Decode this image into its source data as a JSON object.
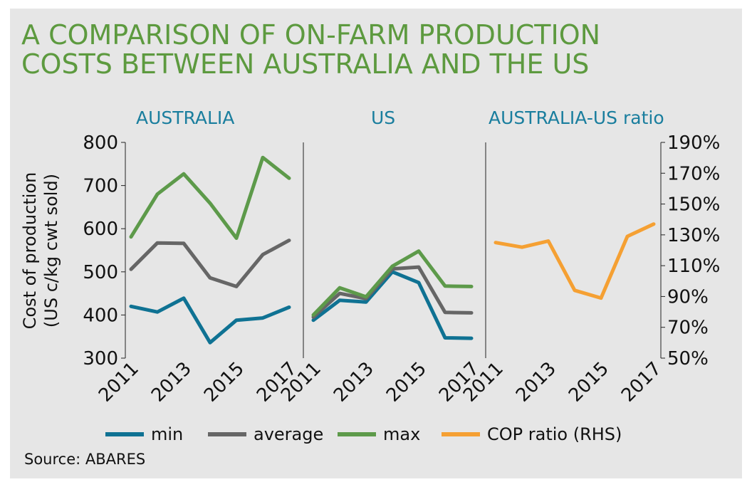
{
  "chart_data": {
    "type": "line",
    "title": "A COMPARISON OF ON-FARM PRODUCTION COSTS BETWEEN AUSTRALIA AND THE US",
    "title_lines": [
      "A COMPARISON OF ON-FARM PRODUCTION",
      "COSTS BETWEEN AUSTRALIA AND THE US"
    ],
    "source": "Source: ABARES",
    "ylabel_lines": [
      "Cost of production",
      "(US c/kg cwt sold)"
    ],
    "ylim": [
      300,
      800
    ],
    "y_ticks": [
      "300",
      "400",
      "500",
      "600",
      "700",
      "800"
    ],
    "y2lim": [
      50,
      190
    ],
    "y2_ticks": [
      "50%",
      "70%",
      "90%",
      "110%",
      "130%",
      "150%",
      "170%",
      "190%"
    ],
    "x_ticks": [
      "2011",
      "2013",
      "2015",
      "2017"
    ],
    "legend_position": "bottom",
    "colors": {
      "min": "#0f7293",
      "average": "#666666",
      "max": "#5d9a4a",
      "ratio": "#f5a033",
      "title": "#5d9a3f",
      "panel_title": "#1a7e9e"
    },
    "panels": [
      {
        "title": "AUSTRALIA",
        "x": [
          2011,
          2012,
          2013,
          2014,
          2015,
          2016,
          2017
        ],
        "series": [
          {
            "key": "min",
            "name": "min",
            "values": [
              420,
              407,
              439,
              336,
              388,
              393,
              418
            ]
          },
          {
            "key": "average",
            "name": "average",
            "values": [
              506,
              567,
              566,
              486,
              466,
              540,
              573
            ]
          },
          {
            "key": "max",
            "name": "max",
            "values": [
              581,
              680,
              727,
              659,
              578,
              765,
              717
            ]
          }
        ]
      },
      {
        "title": "US",
        "x": [
          2011,
          2012,
          2013,
          2014,
          2015,
          2016,
          2017
        ],
        "series": [
          {
            "key": "min",
            "name": "min",
            "values": [
              388,
              434,
              430,
              500,
              475,
              347,
              346
            ]
          },
          {
            "key": "average",
            "name": "average",
            "values": [
              395,
              450,
              438,
              507,
              511,
              406,
              405
            ]
          },
          {
            "key": "max",
            "name": "max",
            "values": [
              400,
              463,
              442,
              513,
              548,
              467,
              466
            ]
          }
        ]
      },
      {
        "title": "AUSTRALIA-US ratio",
        "axis": "right",
        "x": [
          2011,
          2012,
          2013,
          2014,
          2015,
          2016,
          2017
        ],
        "series": [
          {
            "key": "ratio",
            "name": "COP ratio (RHS)",
            "values": [
              125,
              122,
              126,
              94,
              89,
              129,
              137
            ]
          }
        ]
      }
    ],
    "legend": [
      {
        "key": "min",
        "label": "min"
      },
      {
        "key": "average",
        "label": "average"
      },
      {
        "key": "max",
        "label": "max"
      },
      {
        "key": "ratio",
        "label": "COP ratio (RHS)"
      }
    ]
  }
}
